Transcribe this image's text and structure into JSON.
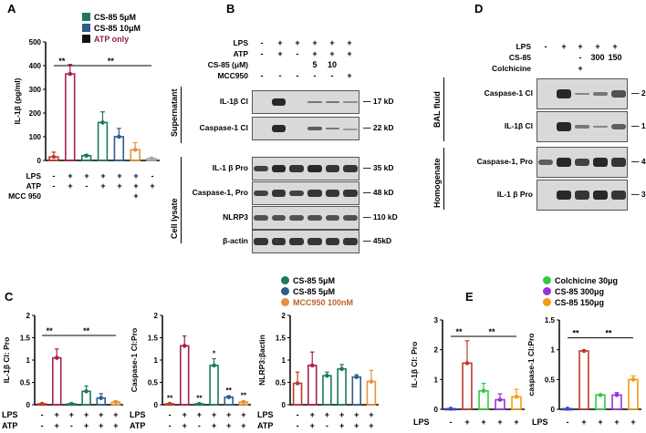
{
  "panels": {
    "A": {
      "label": "A",
      "legend": [
        {
          "name": "CS-85 5μM",
          "color": "#1b7a5a"
        },
        {
          "name": "CS-85 10μM",
          "color": "#2f5d8a"
        },
        {
          "name": "ATP only",
          "color": "#111111"
        }
      ],
      "atp_only_label_color": "#8b2252",
      "row_labels": [
        "LPS",
        "ATP",
        "MCC 950"
      ],
      "signs": [
        [
          "-",
          "+",
          "+",
          "+",
          "+",
          "+",
          "-"
        ],
        [
          "-",
          "+",
          "-",
          "+",
          "+",
          "+",
          "+"
        ],
        [
          "",
          "",
          "",
          "",
          "",
          "+",
          ""
        ]
      ],
      "sig": [
        "**",
        "**"
      ]
    },
    "B": {
      "label": "B",
      "row_labels": [
        "LPS",
        "ATP",
        "CS-85 (μM)",
        "MCC950"
      ],
      "signs": [
        [
          "-",
          "+",
          "+",
          "+",
          "+",
          "+"
        ],
        [
          "-",
          "+",
          "-",
          "+",
          "+",
          "+"
        ],
        [
          "",
          "",
          "",
          "5",
          "10",
          ""
        ],
        [
          "-",
          "-",
          "-",
          "-",
          "-",
          "+"
        ]
      ],
      "sections": [
        "Supernatant",
        "Cell lysate"
      ],
      "blots": [
        {
          "name": "IL-1β Cl",
          "kd": "17 kD"
        },
        {
          "name": "Caspase-1 Cl",
          "kd": "22 kD"
        },
        {
          "name": "IL-1 β Pro",
          "kd": "35 kD"
        },
        {
          "name": "Caspase-1, Pro",
          "kd": "48 kD"
        },
        {
          "name": "NLRP3",
          "kd": "110 kD"
        },
        {
          "name": "β-actin",
          "kd": "45kD"
        }
      ]
    },
    "D": {
      "label": "D",
      "row_labels": [
        "LPS",
        "CS-85",
        "Colchicine"
      ],
      "signs": [
        [
          "-",
          "+",
          "+",
          "+",
          "+"
        ],
        [
          "",
          "",
          "-",
          "300",
          "150"
        ],
        [
          "",
          "",
          "+",
          "",
          ""
        ]
      ],
      "sections": [
        "BAL fluid",
        "Homogenate"
      ],
      "blots": [
        {
          "name": "Caspase-1 Cl",
          "kd": "22 kD"
        },
        {
          "name": "IL-1β Cl",
          "kd": "17 kD"
        },
        {
          "name": "Caspase-1, Pro",
          "kd": "48 kD"
        },
        {
          "name": "IL-1 β Pro",
          "kd": "35 kD"
        }
      ]
    },
    "C": {
      "label": "C",
      "legend": [
        {
          "name": "CS-85 5μM",
          "color": "#1b7a5a"
        },
        {
          "name": "CS-85 5μM",
          "color": "#2f5d8a"
        },
        {
          "name": "MCC950 100nM",
          "color": "#e8913a"
        }
      ],
      "row_labels": [
        "LPS",
        "ATP"
      ],
      "signs": [
        [
          "-",
          "+",
          "+",
          "+",
          "+",
          "+"
        ],
        [
          "-",
          "+",
          "-",
          "+",
          "+",
          "+"
        ]
      ]
    },
    "E": {
      "label": "E",
      "legend": [
        {
          "name": "Colchicine 30μg",
          "color": "#2ecc40"
        },
        {
          "name": "CS-85 300μg",
          "color": "#9b30d9"
        },
        {
          "name": "CS-85 150μg",
          "color": "#f39c12"
        }
      ],
      "row_labels": [
        "LPS"
      ],
      "signs": [
        [
          "-",
          "+",
          "+",
          "+",
          "+"
        ]
      ]
    }
  },
  "chart_data": [
    {
      "id": "A",
      "type": "bar",
      "ylabel": "IL-1β (pg/ml)",
      "ylim": [
        0,
        500
      ],
      "yticks": [
        0,
        100,
        200,
        300,
        400,
        500
      ],
      "categories": [
        "1",
        "2",
        "3",
        "4",
        "5",
        "6",
        "7"
      ],
      "values": [
        15,
        365,
        20,
        160,
        100,
        45,
        8
      ],
      "errors": [
        20,
        40,
        5,
        45,
        35,
        30,
        5
      ],
      "colors": [
        "#c0392b",
        "#a8204e",
        "#1b7a5a",
        "#1b7a5a",
        "#2f5d8a",
        "#e8913a",
        "#aaaaaa"
      ],
      "sig": [
        {
          "from": 0,
          "to": 1,
          "label": "**",
          "y": 400
        },
        {
          "from": 1,
          "to": 6,
          "label": "**",
          "y": 400
        }
      ]
    },
    {
      "id": "C1",
      "type": "bar",
      "ylabel": "IL-1β Cl: Pro",
      "ylim": [
        0,
        2.0
      ],
      "yticks": [
        0,
        0.5,
        1.0,
        1.5,
        2.0
      ],
      "categories": [
        "1",
        "2",
        "3",
        "4",
        "5",
        "6"
      ],
      "values": [
        0.02,
        1.05,
        0.02,
        0.3,
        0.15,
        0.06
      ],
      "errors": [
        0.01,
        0.2,
        0.01,
        0.12,
        0.1,
        0.03
      ],
      "colors": [
        "#c0392b",
        "#a8204e",
        "#1b7a5a",
        "#1b7a5a",
        "#2f5d8a",
        "#e8913a"
      ],
      "sig": [
        {
          "from": 0,
          "to": 1,
          "label": "**",
          "y": 1.55
        },
        {
          "from": 1,
          "to": 5,
          "label": "**",
          "y": 1.55
        }
      ]
    },
    {
      "id": "C2",
      "type": "bar",
      "ylabel": "Caspase-1 Cl:Pro",
      "ylim": [
        0,
        2.0
      ],
      "yticks": [
        0,
        0.5,
        1.0,
        1.5,
        2.0
      ],
      "categories": [
        "1",
        "2",
        "3",
        "4",
        "5",
        "6"
      ],
      "values": [
        0.02,
        1.32,
        0.02,
        0.88,
        0.17,
        0.06
      ],
      "errors": [
        0.01,
        0.22,
        0.01,
        0.15,
        0.03,
        0.03
      ],
      "colors": [
        "#c0392b",
        "#a8204e",
        "#1b7a5a",
        "#1b7a5a",
        "#2f5d8a",
        "#e8913a"
      ],
      "point_labels": [
        "**",
        "",
        "**",
        "*",
        "**",
        "**"
      ]
    },
    {
      "id": "C3",
      "type": "bar",
      "ylabel": "NLRP3:βactin",
      "ylim": [
        0,
        2.0
      ],
      "yticks": [
        0,
        0.5,
        1.0,
        1.5,
        2.0
      ],
      "categories": [
        "1",
        "2",
        "3",
        "4",
        "5",
        "6"
      ],
      "values": [
        0.48,
        0.88,
        0.65,
        0.8,
        0.62,
        0.52
      ],
      "errors": [
        0.25,
        0.3,
        0.08,
        0.1,
        0.05,
        0.25
      ],
      "colors": [
        "#c0392b",
        "#a8204e",
        "#1b7a5a",
        "#1b7a5a",
        "#2f5d8a",
        "#e8913a"
      ]
    },
    {
      "id": "E1",
      "type": "bar",
      "ylabel": "IL-1β Cl: Pro",
      "ylim": [
        0,
        3
      ],
      "yticks": [
        0,
        1,
        2,
        3
      ],
      "categories": [
        "1",
        "2",
        "3",
        "4",
        "5"
      ],
      "values": [
        0.02,
        1.55,
        0.62,
        0.32,
        0.42
      ],
      "errors": [
        0.01,
        0.75,
        0.25,
        0.2,
        0.25
      ],
      "colors": [
        "#3b4cc0",
        "#c0392b",
        "#2ecc40",
        "#9b30d9",
        "#f39c12"
      ],
      "sig": [
        {
          "from": 0,
          "to": 1,
          "label": "**",
          "y": 2.45
        },
        {
          "from": 1,
          "to": 4,
          "label": "**",
          "y": 2.45
        }
      ]
    },
    {
      "id": "E2",
      "type": "bar",
      "ylabel": "caspase-1 Cl:Pro",
      "ylim": [
        0,
        1.5
      ],
      "yticks": [
        0,
        0.5,
        1.0,
        1.5
      ],
      "categories": [
        "1",
        "2",
        "3",
        "4",
        "5"
      ],
      "values": [
        0.01,
        0.98,
        0.24,
        0.24,
        0.5
      ],
      "errors": [
        0.005,
        0.01,
        0.01,
        0.04,
        0.06
      ],
      "colors": [
        "#3b4cc0",
        "#c0392b",
        "#2ecc40",
        "#9b30d9",
        "#f39c12"
      ],
      "sig": [
        {
          "from": 0,
          "to": 1,
          "label": "**",
          "y": 1.2
        },
        {
          "from": 1,
          "to": 4,
          "label": "**",
          "y": 1.2
        }
      ]
    }
  ]
}
